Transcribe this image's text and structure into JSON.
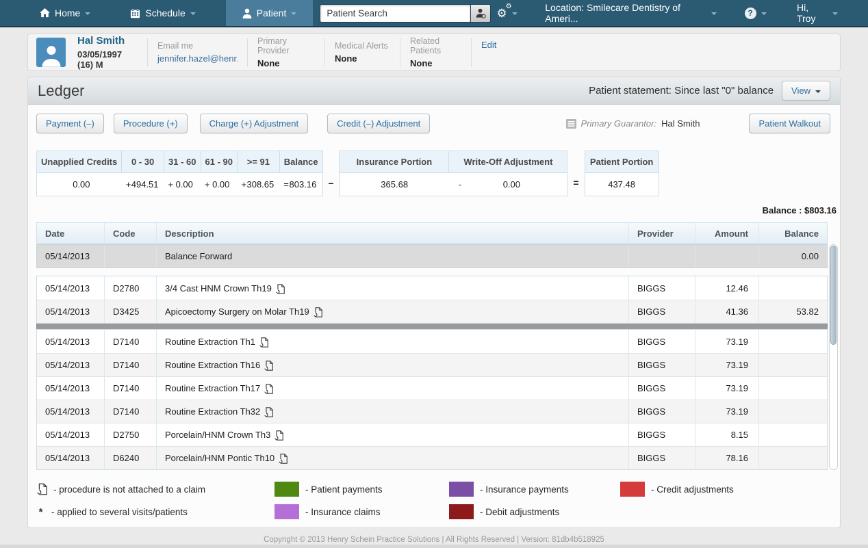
{
  "nav": {
    "items": [
      {
        "label": "Home"
      },
      {
        "label": "Schedule"
      },
      {
        "label": "Patient"
      }
    ],
    "search_placeholder": "Patient Search",
    "location_label": "Location: Smilecare Dentistry of Ameri...",
    "help_glyph": "?",
    "greeting": "Hi,  Troy"
  },
  "patient": {
    "name": "Hal Smith",
    "dob_line": "03/05/1997 (16) M",
    "email_label": "Email me",
    "email_value": "jennifer.hazel@henr...",
    "primary_provider_label": "Primary Provider",
    "primary_provider_value": "None",
    "medical_alerts_label": "Medical Alerts",
    "medical_alerts_value": "None",
    "related_patients_label": "Related Patients",
    "related_patients_value": "None",
    "edit_label": "Edit"
  },
  "ledger": {
    "title": "Ledger",
    "statement_text": "Patient statement: Since last \"0\" balance",
    "view_label": "View",
    "buttons": [
      "Payment (–)",
      "Procedure (+)",
      "Charge (+) Adjustment",
      "Credit (–) Adjustment"
    ],
    "primary_guarantor_label": "Primary Guarantor:",
    "primary_guarantor_value": "Hal Smith",
    "walkout_label": "Patient Walkout",
    "balance_line": "Balance : $803.16"
  },
  "aging": {
    "box1": {
      "headers": [
        "Unapplied Credits",
        "0 - 30",
        "31 - 60",
        "61 - 90",
        ">= 91",
        "Balance"
      ],
      "ops": [
        "",
        "+",
        "+",
        "+",
        "+",
        "="
      ],
      "values": [
        "0.00",
        "494.51",
        "0.00",
        "0.00",
        "308.65",
        "803.16"
      ]
    },
    "minus_sign": "–",
    "box2": {
      "headers": [
        "Insurance Portion",
        "Write-Off Adjustment"
      ],
      "value1": "365.68",
      "operator": "-",
      "value2": "0.00"
    },
    "equals_sign": "=",
    "box3": {
      "header": "Patient Portion",
      "value": "437.48"
    }
  },
  "table": {
    "headers": [
      "Date",
      "Code",
      "Description",
      "Provider",
      "Amount",
      "Balance"
    ],
    "rows": [
      {
        "type": "forward",
        "date": "05/14/2013",
        "code": "",
        "desc": "Balance Forward",
        "claim": false,
        "provider": "",
        "amount": "",
        "balance": "0.00"
      },
      {
        "type": "gap"
      },
      {
        "type": "proc",
        "date": "05/14/2013",
        "code": "D2780",
        "desc": "3/4 Cast HNM Crown Th19",
        "claim": true,
        "provider": "BIGGS",
        "amount": "12.46",
        "balance": ""
      },
      {
        "type": "proc",
        "date": "05/14/2013",
        "code": "D3425",
        "desc": "Apicoectomy Surgery on Molar Th19",
        "claim": true,
        "provider": "BIGGS",
        "amount": "41.36",
        "balance": "53.82"
      },
      {
        "type": "divider"
      },
      {
        "type": "proc",
        "date": "05/14/2013",
        "code": "D7140",
        "desc": "Routine Extraction Th1",
        "claim": true,
        "provider": "BIGGS",
        "amount": "73.19",
        "balance": ""
      },
      {
        "type": "proc",
        "date": "05/14/2013",
        "code": "D7140",
        "desc": "Routine Extraction Th16",
        "claim": true,
        "provider": "BIGGS",
        "amount": "73.19",
        "balance": ""
      },
      {
        "type": "proc",
        "date": "05/14/2013",
        "code": "D7140",
        "desc": "Routine Extraction Th17",
        "claim": true,
        "provider": "BIGGS",
        "amount": "73.19",
        "balance": ""
      },
      {
        "type": "proc",
        "date": "05/14/2013",
        "code": "D7140",
        "desc": "Routine Extraction Th32",
        "claim": true,
        "provider": "BIGGS",
        "amount": "73.19",
        "balance": ""
      },
      {
        "type": "proc",
        "date": "05/14/2013",
        "code": "D2750",
        "desc": "Porcelain/HNM Crown Th3",
        "claim": true,
        "provider": "BIGGS",
        "amount": "8.15",
        "balance": ""
      },
      {
        "type": "proc",
        "date": "05/14/2013",
        "code": "D6240",
        "desc": "Porcelain/HNM Pontic Th10",
        "claim": true,
        "provider": "BIGGS",
        "amount": "78.16",
        "balance": ""
      }
    ]
  },
  "legend": {
    "claim_icon_label": "- procedure is not attached to a claim",
    "asterisk": "*",
    "asterisk_label": "- applied to several visits/patients",
    "items": [
      {
        "color": "#4f8912",
        "label": "- Patient payments"
      },
      {
        "color": "#b570d8",
        "label": "- Insurance claims"
      },
      {
        "color": "#7b4fa6",
        "label": "- Insurance payments"
      },
      {
        "color": "#8e1b1b",
        "label": "- Debit adjustments"
      },
      {
        "color": "#d63b3b",
        "label": "- Credit adjustments"
      }
    ]
  },
  "footer": {
    "text": "Copyright © 2013 Henry Schein Practice Solutions | All Rights Reserved | Version: 81db4b518925"
  }
}
